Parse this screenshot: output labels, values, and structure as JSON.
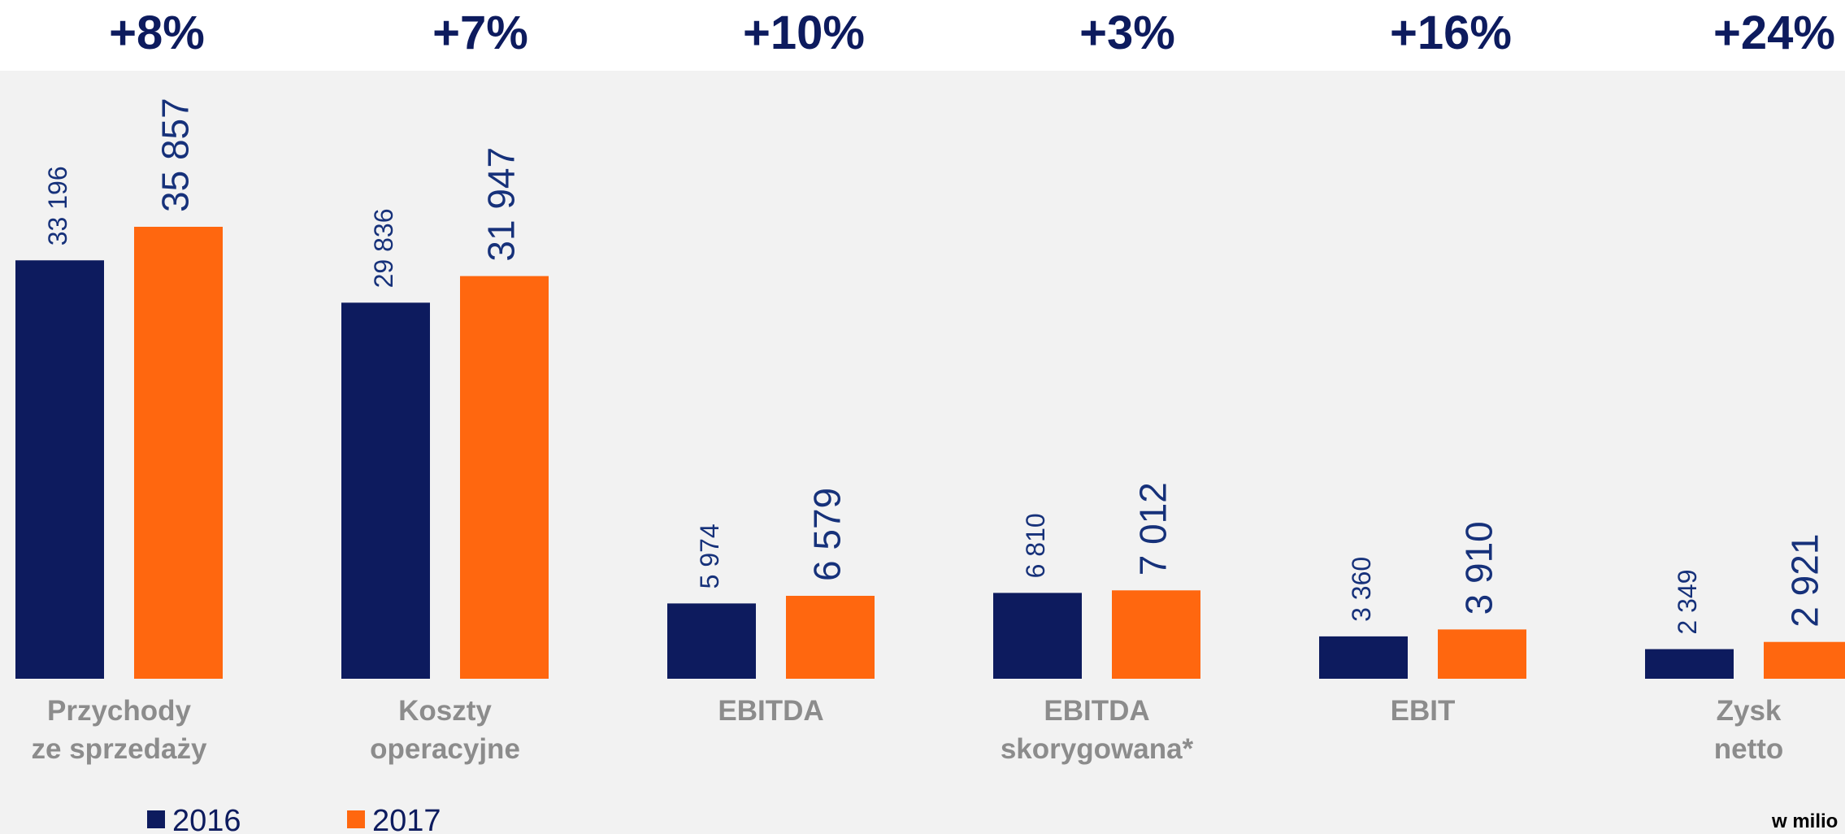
{
  "chart_data": {
    "type": "bar",
    "annotations": [
      "+8%",
      "+7%",
      "+10%",
      "+3%",
      "+16%",
      "+24%"
    ],
    "categories": [
      [
        "Przychody",
        "ze sprzedaży"
      ],
      [
        "Koszty",
        "operacyjne"
      ],
      [
        "EBITDA"
      ],
      [
        "EBITDA",
        "skorygowana*"
      ],
      [
        "EBIT"
      ],
      [
        "Zysk",
        "netto"
      ]
    ],
    "series": [
      {
        "name": "2016",
        "color": "#0d1b5e",
        "values": [
          33196,
          29836,
          5974,
          6810,
          3360,
          2349
        ],
        "value_labels": [
          "33 196",
          "29 836",
          "5 974",
          "6 810",
          "3 360",
          "2 349"
        ]
      },
      {
        "name": "2017",
        "color": "#ff670f",
        "values": [
          35857,
          31947,
          6579,
          7012,
          3910,
          2921
        ],
        "value_labels": [
          "35 857",
          "31 947",
          "6 579",
          "7 012",
          "3 910",
          "2 921"
        ]
      }
    ],
    "note": "w milio"
  }
}
